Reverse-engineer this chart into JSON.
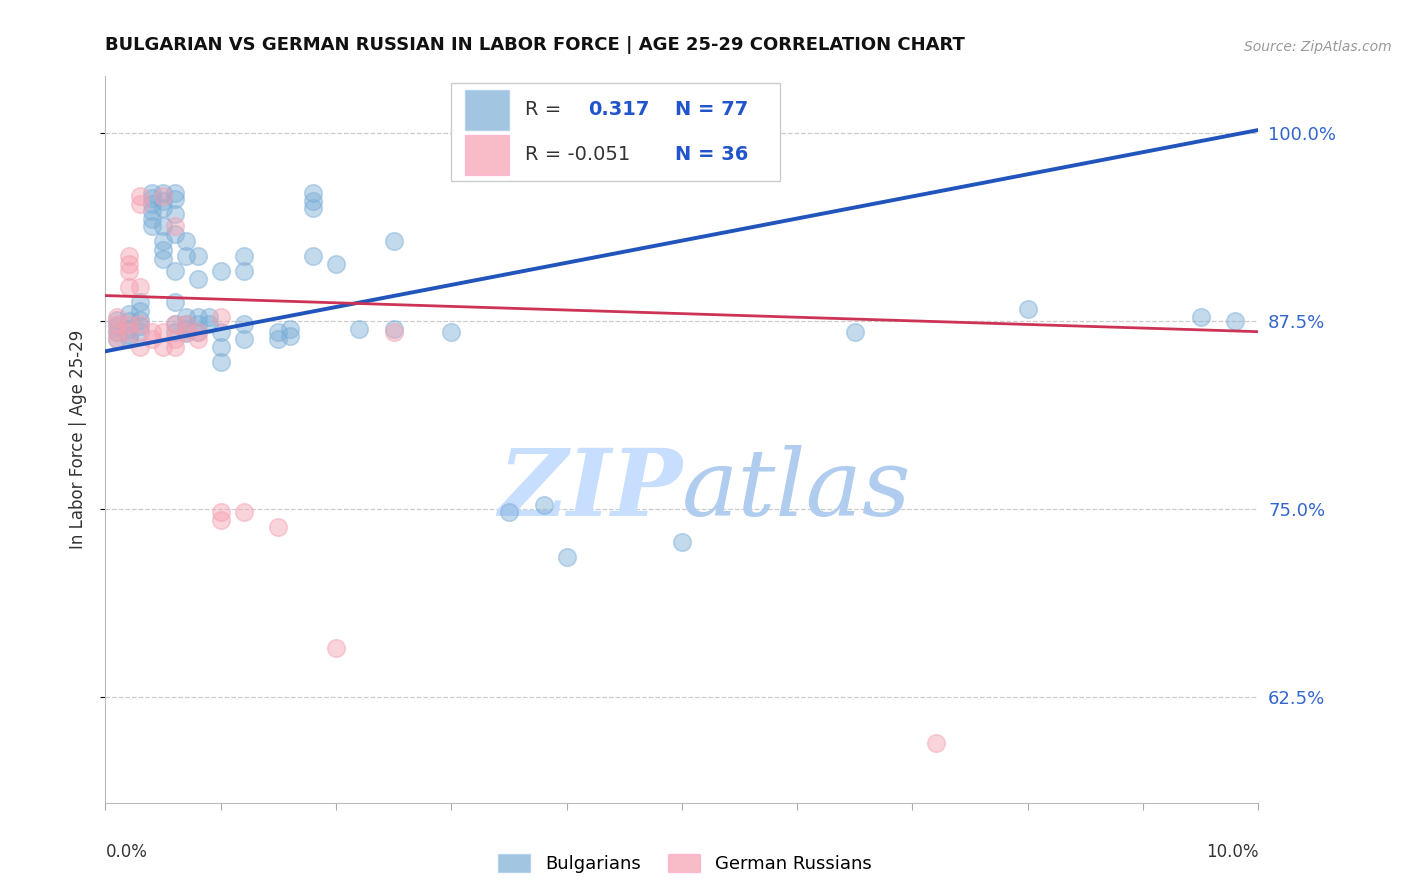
{
  "title": "BULGARIAN VS GERMAN RUSSIAN IN LABOR FORCE | AGE 25-29 CORRELATION CHART",
  "source": "Source: ZipAtlas.com",
  "ylabel": "In Labor Force | Age 25-29",
  "ytick_labels": [
    "62.5%",
    "75.0%",
    "87.5%",
    "100.0%"
  ],
  "ytick_values": [
    0.625,
    0.75,
    0.875,
    1.0
  ],
  "ylim": [
    0.555,
    1.038
  ],
  "xlim": [
    0.0,
    0.1
  ],
  "blue_color": "#7BADD6",
  "pink_color": "#F4A0B0",
  "blue_line_color": "#2255BB",
  "pink_line_color": "#CC3355",
  "watermark_color": "#D8EAFF",
  "grid_color": "#CCCCCC",
  "background": "#FFFFFF",
  "blue_scatter": [
    [
      0.001,
      0.876
    ],
    [
      0.001,
      0.872
    ],
    [
      0.001,
      0.868
    ],
    [
      0.001,
      0.863
    ],
    [
      0.002,
      0.88
    ],
    [
      0.002,
      0.875
    ],
    [
      0.002,
      0.87
    ],
    [
      0.002,
      0.866
    ],
    [
      0.002,
      0.863
    ],
    [
      0.003,
      0.888
    ],
    [
      0.003,
      0.882
    ],
    [
      0.003,
      0.876
    ],
    [
      0.003,
      0.872
    ],
    [
      0.003,
      0.868
    ],
    [
      0.004,
      0.96
    ],
    [
      0.004,
      0.957
    ],
    [
      0.004,
      0.953
    ],
    [
      0.004,
      0.948
    ],
    [
      0.004,
      0.943
    ],
    [
      0.004,
      0.938
    ],
    [
      0.005,
      0.96
    ],
    [
      0.005,
      0.955
    ],
    [
      0.005,
      0.95
    ],
    [
      0.005,
      0.938
    ],
    [
      0.005,
      0.928
    ],
    [
      0.005,
      0.922
    ],
    [
      0.005,
      0.916
    ],
    [
      0.006,
      0.96
    ],
    [
      0.006,
      0.956
    ],
    [
      0.006,
      0.946
    ],
    [
      0.006,
      0.933
    ],
    [
      0.006,
      0.908
    ],
    [
      0.006,
      0.888
    ],
    [
      0.006,
      0.873
    ],
    [
      0.006,
      0.868
    ],
    [
      0.007,
      0.928
    ],
    [
      0.007,
      0.918
    ],
    [
      0.007,
      0.878
    ],
    [
      0.007,
      0.873
    ],
    [
      0.007,
      0.87
    ],
    [
      0.007,
      0.867
    ],
    [
      0.008,
      0.918
    ],
    [
      0.008,
      0.903
    ],
    [
      0.008,
      0.878
    ],
    [
      0.008,
      0.873
    ],
    [
      0.008,
      0.868
    ],
    [
      0.009,
      0.878
    ],
    [
      0.009,
      0.873
    ],
    [
      0.01,
      0.908
    ],
    [
      0.01,
      0.868
    ],
    [
      0.01,
      0.858
    ],
    [
      0.01,
      0.848
    ],
    [
      0.012,
      0.918
    ],
    [
      0.012,
      0.908
    ],
    [
      0.012,
      0.873
    ],
    [
      0.012,
      0.863
    ],
    [
      0.015,
      0.868
    ],
    [
      0.015,
      0.863
    ],
    [
      0.016,
      0.87
    ],
    [
      0.016,
      0.865
    ],
    [
      0.018,
      0.96
    ],
    [
      0.018,
      0.955
    ],
    [
      0.018,
      0.95
    ],
    [
      0.018,
      0.918
    ],
    [
      0.02,
      0.913
    ],
    [
      0.022,
      0.87
    ],
    [
      0.025,
      0.928
    ],
    [
      0.025,
      0.87
    ],
    [
      0.03,
      0.868
    ],
    [
      0.035,
      0.748
    ],
    [
      0.038,
      0.753
    ],
    [
      0.04,
      0.718
    ],
    [
      0.05,
      0.728
    ],
    [
      0.065,
      0.868
    ],
    [
      0.08,
      0.883
    ],
    [
      0.095,
      0.878
    ],
    [
      0.098,
      0.875
    ]
  ],
  "pink_scatter": [
    [
      0.001,
      0.878
    ],
    [
      0.001,
      0.873
    ],
    [
      0.001,
      0.868
    ],
    [
      0.001,
      0.863
    ],
    [
      0.002,
      0.918
    ],
    [
      0.002,
      0.913
    ],
    [
      0.002,
      0.908
    ],
    [
      0.002,
      0.898
    ],
    [
      0.002,
      0.873
    ],
    [
      0.002,
      0.868
    ],
    [
      0.003,
      0.958
    ],
    [
      0.003,
      0.953
    ],
    [
      0.003,
      0.898
    ],
    [
      0.003,
      0.873
    ],
    [
      0.003,
      0.858
    ],
    [
      0.004,
      0.868
    ],
    [
      0.004,
      0.863
    ],
    [
      0.005,
      0.958
    ],
    [
      0.005,
      0.868
    ],
    [
      0.005,
      0.858
    ],
    [
      0.006,
      0.938
    ],
    [
      0.006,
      0.873
    ],
    [
      0.006,
      0.863
    ],
    [
      0.006,
      0.858
    ],
    [
      0.007,
      0.873
    ],
    [
      0.007,
      0.868
    ],
    [
      0.008,
      0.868
    ],
    [
      0.008,
      0.863
    ],
    [
      0.01,
      0.878
    ],
    [
      0.01,
      0.748
    ],
    [
      0.01,
      0.743
    ],
    [
      0.012,
      0.748
    ],
    [
      0.015,
      0.738
    ],
    [
      0.02,
      0.658
    ],
    [
      0.025,
      0.868
    ],
    [
      0.072,
      0.595
    ]
  ],
  "blue_line_x": [
    0.0,
    0.1
  ],
  "blue_line_y": [
    0.855,
    1.002
  ],
  "pink_line_x": [
    0.0,
    0.1
  ],
  "pink_line_y": [
    0.892,
    0.868
  ]
}
